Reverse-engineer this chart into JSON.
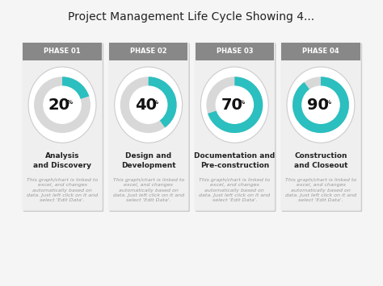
{
  "title": "Project Management Life Cycle Showing 4...",
  "background_color": "#f5f5f5",
  "phases": [
    "PHASE 01",
    "PHASE 02",
    "PHASE 03",
    "PHASE 04"
  ],
  "percentages": [
    20,
    40,
    70,
    90
  ],
  "phase_labels": [
    "Analysis\nand Discovery",
    "Design and\nDevelopment",
    "Documentation and\nPre-construction",
    "Construction\nand Closeout"
  ],
  "sub_text": "This graph/chart is linked to\nexcel, and changes\nautomatically based on\ndata. Just left click on it and\nselect 'Edit Data'.",
  "header_bg": "#888888",
  "header_text_color": "#ffffff",
  "card_bg": "#efefef",
  "donut_track_color": "#d8d8d8",
  "donut_fill_color": "#2bbfbf",
  "card_shadow": "#cccccc",
  "title_color": "#222222",
  "label_color": "#222222",
  "sub_text_color": "#999999",
  "pct_color": "#111111",
  "pct_fontsize": 14,
  "label_fontsize": 6.5,
  "sub_fontsize": 4.5,
  "header_fontsize": 6
}
